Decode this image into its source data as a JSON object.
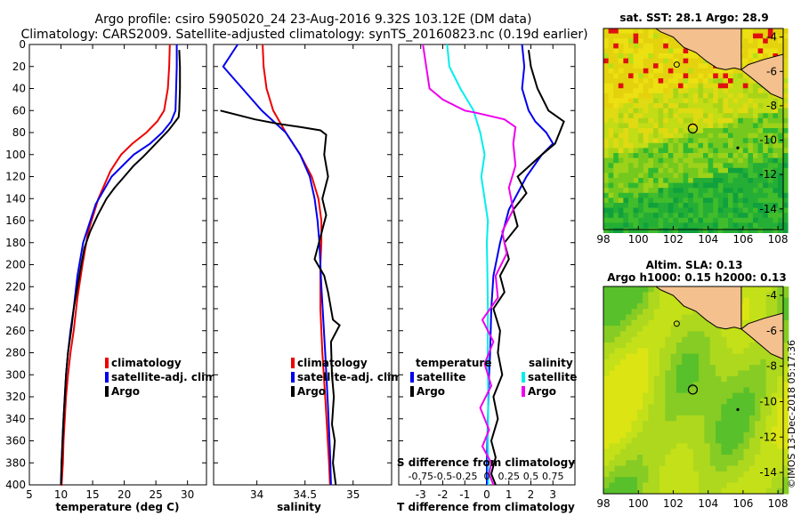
{
  "header": {
    "line1": "Argo profile: csiro 5905020_24 23-Aug-2016 9.32S 103.12E (DM data)",
    "line2": "Climatology: CARS2009. Satellite-adjusted climatology: synTS_20160823.nc (0.19d earlier)"
  },
  "colors": {
    "climatology": "#ee0000",
    "satellite": "#0000ee",
    "argo": "#000000",
    "salinity_sat": "#00eeee",
    "salinity_clim": "#ee00ee"
  },
  "chart_data": [
    {
      "id": "temperature",
      "type": "line",
      "xlabel": "temperature (deg C)",
      "ylabel": "",
      "xlim": [
        5,
        33
      ],
      "ylim": [
        0,
        400
      ],
      "y_reversed": true,
      "x_ticks": [
        5,
        10,
        15,
        20,
        25,
        30
      ],
      "y_ticks": [
        0,
        20,
        40,
        60,
        80,
        100,
        120,
        140,
        160,
        180,
        200,
        220,
        240,
        260,
        280,
        300,
        320,
        340,
        360,
        380,
        400
      ],
      "legend": [
        "climatology",
        "satellite-adj. clim.",
        "Argo"
      ],
      "series": [
        {
          "name": "climatology",
          "x": [
            27.2,
            27.1,
            26.9,
            26.3,
            25.2,
            23.5,
            21.3,
            19.5,
            17.8,
            15.9,
            14.3,
            13.4,
            12.6,
            12.0,
            11.5,
            11.1,
            10.8,
            10.6,
            10.4,
            10.3,
            10.1,
            10.0
          ],
          "y": [
            0,
            20,
            40,
            60,
            70,
            80,
            90,
            100,
            115,
            140,
            170,
            200,
            230,
            260,
            280,
            300,
            320,
            340,
            360,
            380,
            400,
            400
          ]
        },
        {
          "name": "satellite-adj. clim.",
          "x": [
            28.3,
            28.3,
            28.2,
            28.1,
            27.4,
            26.0,
            24.1,
            21.5,
            18.0,
            15.5,
            13.5,
            12.6,
            12.0,
            11.5,
            11.1,
            10.8,
            10.6,
            10.3,
            10.1,
            10.0
          ],
          "y": [
            0,
            20,
            40,
            60,
            70,
            80,
            90,
            100,
            120,
            145,
            180,
            210,
            240,
            260,
            280,
            300,
            320,
            350,
            380,
            400
          ]
        },
        {
          "name": "Argo",
          "x": [
            28.7,
            28.8,
            28.8,
            28.7,
            28.6,
            27.0,
            25.0,
            23.0,
            21.5,
            19.7,
            18.5,
            17.2,
            15.8,
            14.6,
            13.7,
            13.2,
            12.6,
            12.0,
            11.6,
            11.1,
            10.8,
            10.4,
            10.1,
            10.0
          ],
          "y": [
            5,
            20,
            40,
            60,
            66,
            78,
            90,
            102,
            110,
            122,
            130,
            140,
            155,
            170,
            185,
            200,
            220,
            240,
            260,
            280,
            300,
            340,
            380,
            400
          ]
        }
      ]
    },
    {
      "id": "salinity",
      "type": "line",
      "xlabel": "salinity",
      "ylabel": "",
      "xlim": [
        33.55,
        35.4
      ],
      "ylim": [
        0,
        400
      ],
      "y_reversed": true,
      "x_ticks": [
        34,
        34.5,
        35
      ],
      "x_tick_labels": [
        "34",
        "34.5",
        "35"
      ],
      "legend": [
        "climatology",
        "satellite-adj. clim.",
        "Argo"
      ],
      "series": [
        {
          "name": "climatology",
          "x": [
            34.06,
            34.07,
            34.1,
            34.17,
            34.3,
            34.45,
            34.57,
            34.64,
            34.67,
            34.67,
            34.66,
            34.66,
            34.68,
            34.71,
            34.73,
            34.75,
            34.76
          ],
          "y": [
            0,
            20,
            40,
            60,
            80,
            100,
            120,
            140,
            160,
            180,
            200,
            240,
            280,
            320,
            350,
            380,
            400
          ]
        },
        {
          "name": "satellite-adj. clim.",
          "x": [
            33.8,
            33.65,
            33.85,
            34.05,
            34.3,
            34.45,
            34.55,
            34.6,
            34.63,
            34.65,
            34.67,
            34.71,
            34.74,
            34.76,
            34.77
          ],
          "y": [
            0,
            20,
            40,
            60,
            80,
            100,
            120,
            140,
            160,
            180,
            220,
            280,
            330,
            370,
            400
          ]
        },
        {
          "name": "Argo",
          "x": [
            33.62,
            33.98,
            34.22,
            34.45,
            34.66,
            34.72,
            34.7,
            34.74,
            34.68,
            34.72,
            34.66,
            34.6,
            34.7,
            34.74,
            34.79,
            34.86,
            34.77,
            34.78,
            34.8,
            34.78,
            34.81,
            34.79,
            34.82
          ],
          "y": [
            60,
            68,
            72,
            75,
            78,
            82,
            100,
            120,
            140,
            155,
            175,
            195,
            210,
            225,
            250,
            255,
            270,
            300,
            320,
            345,
            360,
            380,
            400
          ]
        }
      ]
    },
    {
      "id": "difference",
      "type": "line",
      "xlabel": "T difference from climatology",
      "title_bottom": "S difference from climatology",
      "xlim": [
        -4,
        4
      ],
      "ylim": [
        0,
        400
      ],
      "y_reversed": true,
      "x_ticks": [
        -3,
        -2,
        -1,
        0,
        1,
        2,
        3
      ],
      "x_top_labels": [
        "-0.75",
        "-0.5",
        "-0.25",
        "0",
        "0.25",
        "0.5",
        "0.75"
      ],
      "legend_left_title": "temperature",
      "legend_right_title": "salinity",
      "legend_left": [
        "satellite",
        "Argo"
      ],
      "legend_right": [
        "satellite",
        "Argo"
      ],
      "series": [
        {
          "name": "T satellite",
          "x": [
            1.6,
            1.7,
            1.6,
            1.9,
            2.2,
            2.7,
            3.0,
            2.5,
            1.8,
            1.0,
            0.6,
            0.3,
            0.2,
            0.15,
            0.1,
            0.05,
            0.0,
            0.0
          ],
          "y": [
            0,
            20,
            40,
            60,
            70,
            80,
            90,
            100,
            120,
            150,
            180,
            210,
            240,
            280,
            300,
            340,
            380,
            400
          ]
        },
        {
          "name": "T Argo",
          "x": [
            1.9,
            2.0,
            2.3,
            2.8,
            3.5,
            3.3,
            3.1,
            2.5,
            1.4,
            1.8,
            1.2,
            1.4,
            0.8,
            1.0,
            0.6,
            0.8,
            0.3,
            0.6,
            0.5,
            0.7,
            0.3,
            0.5,
            0.2,
            0.4,
            0.2,
            0.4
          ],
          "y": [
            5,
            20,
            40,
            60,
            70,
            80,
            90,
            100,
            120,
            135,
            150,
            165,
            180,
            195,
            210,
            225,
            240,
            260,
            280,
            300,
            320,
            340,
            360,
            375,
            390,
            400
          ]
        },
        {
          "name": "S satellite",
          "x": [
            -1.8,
            -1.7,
            -1.2,
            -0.6,
            -0.3,
            -0.1,
            -0.25,
            -0.1,
            0.05,
            0.0,
            0.02,
            0.05,
            0.04,
            0.06,
            0.05,
            0.07
          ],
          "y": [
            0,
            20,
            40,
            60,
            80,
            100,
            120,
            140,
            160,
            180,
            200,
            240,
            280,
            320,
            360,
            400
          ]
        },
        {
          "name": "S Argo",
          "x": [
            -2.9,
            -2.6,
            -2.0,
            -1.5,
            -1.0,
            -0.5,
            0.8,
            1.3,
            1.2,
            1.3,
            1.0,
            1.2,
            0.7,
            0.9,
            0.4,
            0.5,
            -0.2,
            0.3,
            -0.1,
            0.2,
            -0.3,
            0.1,
            -0.2,
            0.2,
            0.1,
            0.3
          ],
          "y": [
            0,
            40,
            50,
            55,
            60,
            62,
            68,
            75,
            90,
            110,
            130,
            150,
            170,
            190,
            210,
            230,
            250,
            270,
            290,
            310,
            330,
            350,
            365,
            380,
            390,
            400
          ]
        }
      ]
    },
    {
      "id": "sst_map",
      "type": "heatmap",
      "title": "sat. SST: 28.1 Argo: 28.9",
      "x_ticks": [
        98,
        100,
        102,
        104,
        106,
        108
      ],
      "y_ticks": [
        -4,
        -6,
        -8,
        -10,
        -12,
        -14
      ],
      "xlim": [
        98,
        108.3
      ],
      "ylim": [
        -15.2,
        -3.5
      ],
      "argo_position": [
        103.12,
        -9.32
      ]
    },
    {
      "id": "sla_map",
      "type": "heatmap",
      "title": "Altim. SLA: 0.13",
      "subtitle": "Argo h1000: 0.15 h2000: 0.13",
      "x_ticks": [
        98,
        100,
        102,
        104,
        106,
        108
      ],
      "y_ticks": [
        -4,
        -6,
        -8,
        -10,
        -12,
        -14
      ],
      "xlim": [
        98,
        108.3
      ],
      "ylim": [
        -15.2,
        -3.5
      ],
      "argo_position": [
        103.12,
        -9.32
      ]
    }
  ],
  "footer": {
    "credit": "©IMOS 13-Dec-2018 05:17:36"
  }
}
